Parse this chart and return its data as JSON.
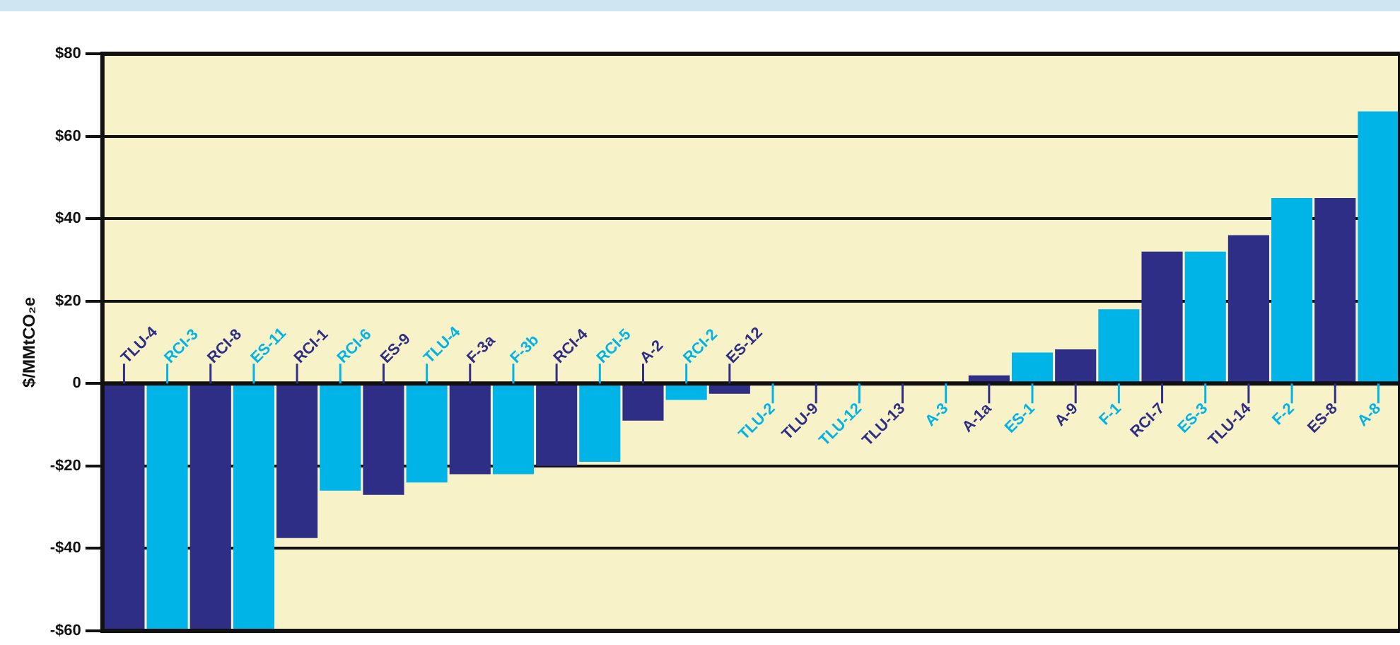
{
  "chart_data": {
    "type": "bar",
    "ylabel": "$/MMtCO₂e",
    "categories": [
      "TLU-4",
      "RCI-3",
      "RCI-8",
      "ES-11",
      "RCI-1",
      "RCI-6",
      "ES-9",
      "TLU-4",
      "F-3a",
      "F-3b",
      "RCI-4",
      "RCI-5",
      "A-2",
      "RCI-2",
      "ES-12",
      "TLU-2",
      "TLU-9",
      "TLU-12",
      "TLU-13",
      "A-3",
      "A-1a",
      "ES-1",
      "A-9",
      "F-1",
      "RCI-7",
      "ES-3",
      "TLU-14",
      "F-2",
      "ES-8",
      "A-8"
    ],
    "values": [
      -60,
      -60,
      -60,
      -60,
      -37.5,
      -26,
      -27,
      -24,
      -22,
      -22,
      -20,
      -19,
      -9,
      -4,
      -2.5,
      0,
      0,
      0,
      0,
      0,
      2,
      7.5,
      8.3,
      18,
      32,
      32,
      36,
      45,
      45,
      66
    ],
    "colors": [
      "#2e2e86",
      "#00b4e8",
      "#2e2e86",
      "#00b4e8",
      "#2e2e86",
      "#00b4e8",
      "#2e2e86",
      "#00b4e8",
      "#2e2e86",
      "#00b4e8",
      "#2e2e86",
      "#00b4e8",
      "#2e2e86",
      "#00b4e8",
      "#2e2e86",
      "#00b4e8",
      "#2e2e86",
      "#00b4e8",
      "#2e2e86",
      "#00b4e8",
      "#2e2e86",
      "#00b4e8",
      "#2e2e86",
      "#00b4e8",
      "#2e2e86",
      "#00b4e8",
      "#2e2e86",
      "#00b4e8",
      "#2e2e86",
      "#00b4e8"
    ],
    "ylim": [
      -60,
      80
    ],
    "yticks": [
      {
        "value": 80,
        "label": "$80"
      },
      {
        "value": 60,
        "label": "$60"
      },
      {
        "value": 40,
        "label": "$40"
      },
      {
        "value": 20,
        "label": "$20"
      },
      0,
      {
        "value": -20,
        "label": "-$20"
      },
      {
        "value": -40,
        "label": "-$40"
      },
      {
        "value": -60,
        "label": "-$60"
      }
    ],
    "grid": "y",
    "legend": false
  }
}
